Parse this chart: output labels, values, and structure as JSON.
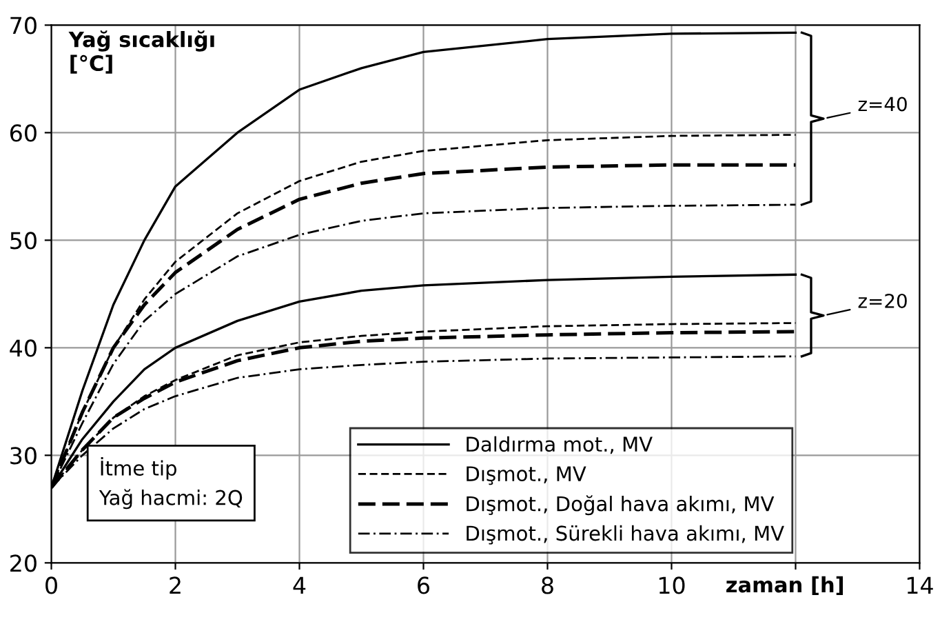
{
  "chart_data": {
    "type": "line",
    "ylabel": "Yağ sıcaklığı\n[°C]",
    "xlabel": "zaman [h]",
    "xlim": [
      0,
      14
    ],
    "xticks": [
      0,
      2,
      4,
      6,
      8,
      10,
      {
        "value": 12,
        "label": null
      },
      14
    ],
    "ylim": [
      20,
      70
    ],
    "yticks": [
      20,
      30,
      40,
      50,
      60,
      70
    ],
    "grid": true,
    "legend": "bottom right",
    "marker": "none",
    "annotations": [
      "z=40",
      "z=20",
      "İtme tip\nYağ hacmi: 2Q"
    ],
    "series": [
      {
        "name": "Daldırma mot., MV",
        "color": "#000000",
        "line_style": "solid",
        "x": [
          0,
          0.5,
          1,
          1.5,
          2,
          3,
          4,
          5,
          6,
          8,
          10,
          12
        ],
        "values": [
          27,
          36,
          44,
          50,
          55,
          60,
          64,
          66,
          67.5,
          68.7,
          69.2,
          69.3
        ]
      },
      {
        "name": "Dışmot., MV",
        "color": "#000000",
        "line_style": "dashed",
        "x": [
          0,
          0.5,
          1,
          1.5,
          2,
          3,
          4,
          5,
          6,
          8,
          10,
          12
        ],
        "values": [
          27,
          34,
          40,
          44.5,
          48,
          52.5,
          55.5,
          57.3,
          58.3,
          59.3,
          59.7,
          59.8
        ]
      },
      {
        "name": "Dışmot., Doğal hava akımı, MV",
        "color": "#000000",
        "line_style": "longdash",
        "x": [
          0,
          0.5,
          1,
          1.5,
          2,
          3,
          4,
          5,
          6,
          8,
          10,
          12
        ],
        "values": [
          27,
          34,
          40,
          44,
          47,
          51,
          53.8,
          55.3,
          56.2,
          56.8,
          57,
          57
        ]
      },
      {
        "name": "Dışmot., Sürekli hava akımı, MV",
        "color": "#000000",
        "line_style": "dashdot",
        "x": [
          0,
          0.5,
          1,
          1.5,
          2,
          3,
          4,
          5,
          6,
          8,
          10,
          12
        ],
        "values": [
          27,
          33,
          38.5,
          42.5,
          45,
          48.5,
          50.5,
          51.8,
          52.5,
          53,
          53.2,
          53.3
        ]
      },
      {
        "color": "#000000",
        "line_style": "solid",
        "x": [
          0,
          0.5,
          1,
          1.5,
          2,
          3,
          4,
          5,
          6,
          8,
          10,
          12
        ],
        "values": [
          27,
          31.5,
          35,
          38,
          40,
          42.5,
          44.3,
          45.3,
          45.8,
          46.3,
          46.6,
          46.8
        ]
      },
      {
        "color": "#000000",
        "line_style": "dashed",
        "x": [
          0,
          0.5,
          1,
          1.5,
          2,
          3,
          4,
          5,
          6,
          8,
          10,
          12
        ],
        "values": [
          27,
          30.5,
          33.5,
          35.5,
          37,
          39.3,
          40.5,
          41.1,
          41.5,
          42,
          42.2,
          42.3
        ]
      },
      {
        "color": "#000000",
        "line_style": "longdash",
        "x": [
          0,
          0.5,
          1,
          1.5,
          2,
          3,
          4,
          5,
          6,
          8,
          10,
          12
        ],
        "values": [
          27,
          30.5,
          33.5,
          35.3,
          36.8,
          38.8,
          40,
          40.6,
          40.9,
          41.2,
          41.4,
          41.5
        ]
      },
      {
        "color": "#000000",
        "line_style": "dashdot",
        "x": [
          0,
          0.5,
          1,
          1.5,
          2,
          3,
          4,
          5,
          6,
          8,
          10,
          12
        ],
        "values": [
          27,
          30,
          32.5,
          34.3,
          35.5,
          37.2,
          38,
          38.4,
          38.7,
          39,
          39.1,
          39.2
        ]
      }
    ]
  }
}
